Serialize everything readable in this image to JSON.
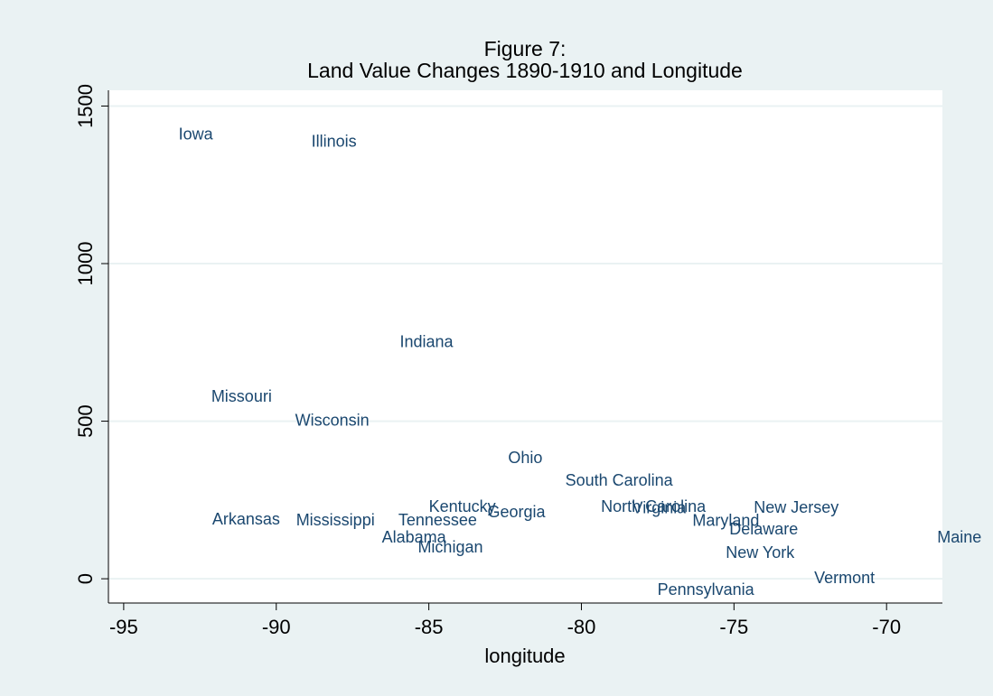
{
  "chart_data": {
    "type": "scatter",
    "title": [
      "Figure 7:",
      "Land Value Changes 1890-1910 and Longitude"
    ],
    "x_label": "longitude",
    "labels": [
      "Iowa",
      "Illinois",
      "Indiana",
      "Missouri",
      "Wisconsin",
      "Ohio",
      "South Carolina",
      "Kentucky",
      "Georgia",
      "North Carolina",
      "Virginia",
      "New Jersey",
      "Arkansas",
      "Mississippi",
      "Tennessee",
      "Maryland",
      "Delaware",
      "Alabama",
      "Michigan",
      "Maine",
      "New York",
      "Vermont",
      "Pennsylvania"
    ],
    "x": [
      -93.2,
      -88.85,
      -85.95,
      -92.13,
      -89.38,
      -82.4,
      -80.53,
      -85.0,
      -83.08,
      -79.36,
      -78.34,
      -74.35,
      -92.1,
      -89.35,
      -86.0,
      -76.36,
      -75.15,
      -86.54,
      -85.36,
      -68.34,
      -75.27,
      -72.37,
      -77.51
    ],
    "values": [
      1407,
      1384,
      748,
      576,
      499,
      381,
      309,
      226,
      209,
      226,
      221,
      223,
      186,
      183,
      183,
      181,
      155,
      129,
      97,
      129,
      80,
      0,
      -37
    ],
    "color": "#1a476f",
    "xlim": [
      -95.5,
      -68.17
    ],
    "ylim": [
      -77,
      1550
    ],
    "xticks": [
      -95,
      -90,
      -85,
      -80,
      -75,
      -70
    ],
    "yticks": [
      0,
      500,
      1000,
      1500
    ],
    "grid": true
  }
}
